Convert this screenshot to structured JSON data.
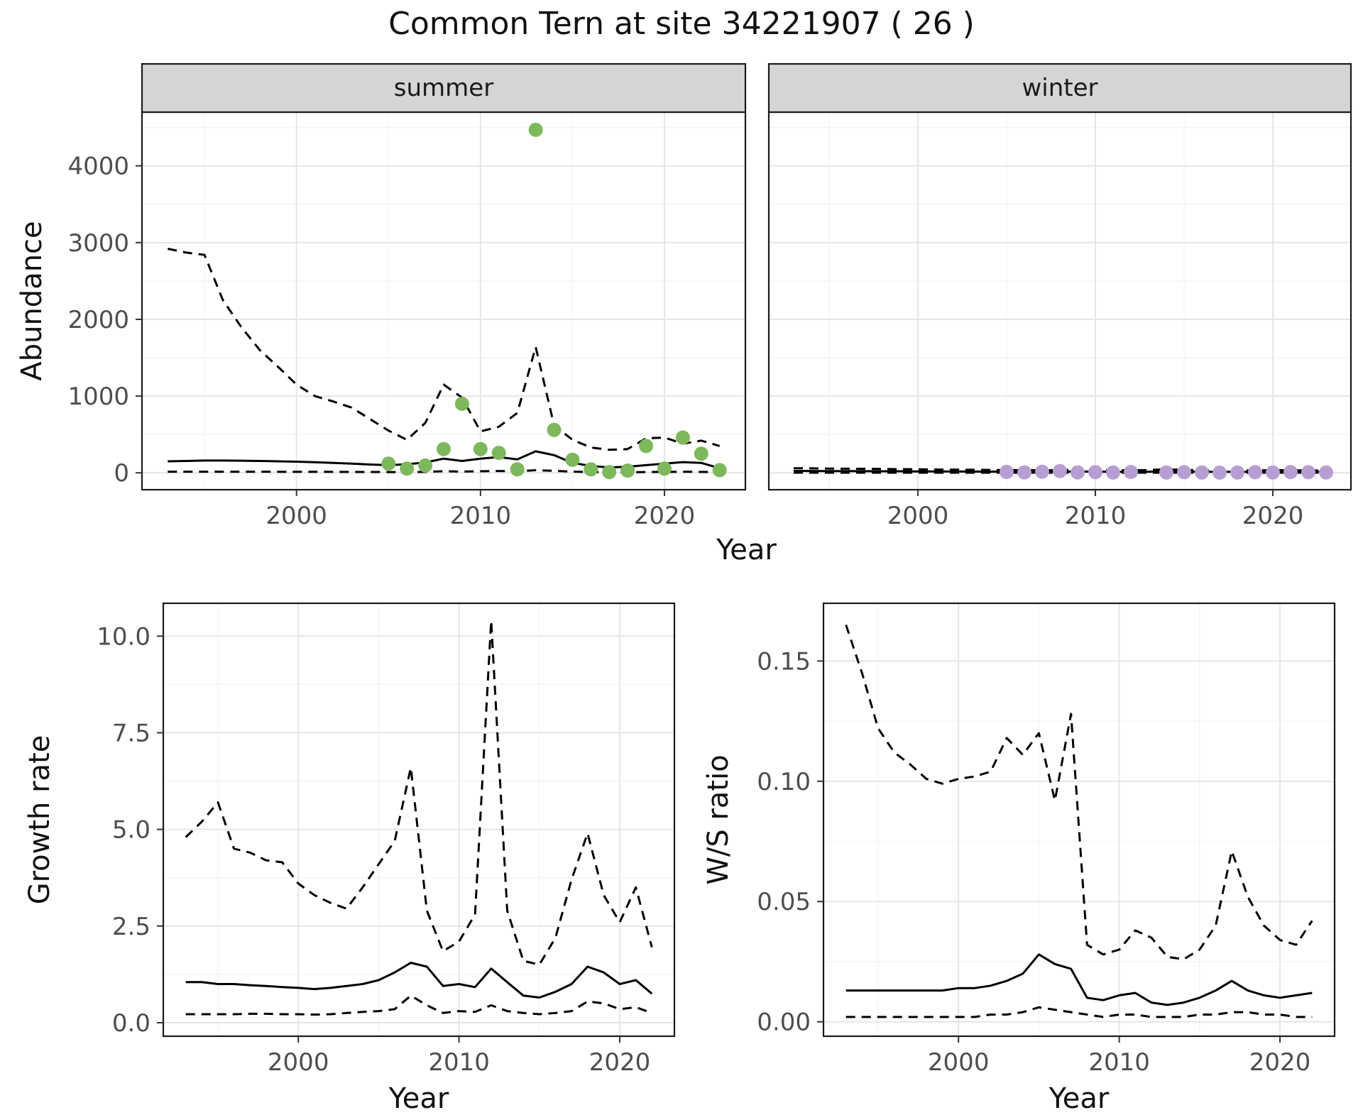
{
  "title": "Common Tern at site 34221907 ( 26 )",
  "colors": {
    "summer_point": "#7db85c",
    "winter_point": "#b79ed2",
    "line": "#000000",
    "grid_major": "#e4e4e4",
    "grid_minor": "#f2f2f2",
    "strip_bg": "#d5d5d5",
    "panel_border": "#1a1a1a",
    "tick_mark": "#333333",
    "tick_text": "#4d4d4d"
  },
  "chart_data": [
    {
      "id": "abundance_summer",
      "type": "line",
      "strip": "summer",
      "xlabel": "Year",
      "ylabel": "Abundance",
      "xlim": [
        1991.6,
        2024.4
      ],
      "ylim": [
        -220,
        4700
      ],
      "x_ticks": [
        2000,
        2010,
        2020
      ],
      "y_ticks": [
        0,
        1000,
        2000,
        3000,
        4000
      ],
      "y_tick_decimals": 0,
      "series": [
        {
          "name": "upper_ci",
          "style": "dashed",
          "x_start": 1993,
          "y": [
            2920,
            2870,
            2840,
            2250,
            1900,
            1600,
            1380,
            1150,
            1000,
            930,
            850,
            700,
            550,
            430,
            650,
            1150,
            980,
            540,
            600,
            780,
            1640,
            620,
            430,
            330,
            300,
            310,
            450,
            460,
            380,
            420,
            350
          ]
        },
        {
          "name": "fit",
          "style": "solid",
          "x_start": 1993,
          "y": [
            150,
            155,
            160,
            160,
            158,
            155,
            150,
            145,
            138,
            130,
            120,
            108,
            100,
            112,
            135,
            185,
            155,
            185,
            205,
            175,
            280,
            230,
            130,
            90,
            70,
            80,
            100,
            120,
            140,
            130,
            60
          ]
        },
        {
          "name": "lower_ci",
          "style": "dashed",
          "x_start": 1993,
          "y": [
            15,
            15,
            15,
            15,
            15,
            15,
            14,
            14,
            13,
            13,
            12,
            11,
            10,
            10,
            12,
            20,
            17,
            20,
            24,
            20,
            34,
            26,
            16,
            10,
            8,
            8,
            10,
            12,
            15,
            12,
            8
          ]
        }
      ],
      "points": {
        "name": "summer_observations",
        "color_key": "summer_point",
        "x": [
          2005,
          2006,
          2007,
          2008,
          2009,
          2010,
          2011,
          2012,
          2013,
          2014,
          2015,
          2016,
          2017,
          2018,
          2019,
          2020,
          2021,
          2022,
          2023
        ],
        "y": [
          120,
          55,
          95,
          310,
          900,
          310,
          260,
          45,
          4470,
          560,
          170,
          45,
          10,
          30,
          350,
          55,
          460,
          250,
          35
        ]
      }
    },
    {
      "id": "abundance_winter",
      "type": "line",
      "strip": "winter",
      "xlabel": "Year",
      "ylabel": "Abundance",
      "xlim": [
        1991.6,
        2024.4
      ],
      "ylim": [
        -220,
        4700
      ],
      "x_ticks": [
        2000,
        2010,
        2020
      ],
      "y_ticks": [
        0,
        1000,
        2000,
        3000,
        4000
      ],
      "y_tick_decimals": 0,
      "series": [
        {
          "name": "upper_ci",
          "style": "dashed",
          "x_start": 1993,
          "y": [
            60,
            58,
            56,
            54,
            52,
            50,
            48,
            46,
            44,
            42,
            40,
            38,
            36,
            34,
            33,
            35,
            40,
            38,
            34,
            33,
            36,
            45,
            38,
            33,
            30,
            30,
            32,
            34,
            33,
            32,
            30
          ]
        },
        {
          "name": "fit",
          "style": "solid",
          "x_start": 1993,
          "y": [
            25,
            24,
            23,
            22,
            21,
            20,
            20,
            19,
            18,
            18,
            17,
            16,
            15,
            14,
            14,
            15,
            17,
            16,
            14,
            14,
            15,
            18,
            16,
            14,
            13,
            13,
            13,
            14,
            14,
            13,
            12
          ]
        },
        {
          "name": "lower_ci",
          "style": "dashed",
          "x_start": 1993,
          "y": [
            2,
            2,
            2,
            2,
            2,
            2,
            2,
            2,
            2,
            2,
            2,
            2,
            2,
            2,
            2,
            2,
            2,
            2,
            2,
            2,
            2,
            2,
            2,
            2,
            2,
            2,
            2,
            2,
            2,
            2,
            2
          ]
        }
      ],
      "points": {
        "name": "winter_observations",
        "color_key": "winter_point",
        "x": [
          2005,
          2006,
          2007,
          2008,
          2009,
          2010,
          2011,
          2012,
          2014,
          2015,
          2016,
          2017,
          2018,
          2019,
          2020,
          2021,
          2022,
          2023
        ],
        "y": [
          12,
          6,
          15,
          22,
          6,
          9,
          5,
          11,
          5,
          8,
          5,
          3,
          5,
          8,
          5,
          10,
          8,
          5
        ]
      }
    },
    {
      "id": "growth_rate",
      "type": "line",
      "strip": null,
      "xlabel": "Year",
      "ylabel": "Growth rate",
      "xlim": [
        1991.6,
        2023.4
      ],
      "ylim": [
        -0.35,
        10.85
      ],
      "x_ticks": [
        2000,
        2010,
        2020
      ],
      "y_ticks": [
        0,
        2.5,
        5,
        7.5,
        10
      ],
      "y_tick_decimals": 1,
      "series": [
        {
          "name": "upper_ci",
          "style": "dashed",
          "x_start": 1993,
          "y": [
            4.8,
            5.2,
            5.7,
            4.5,
            4.4,
            4.2,
            4.15,
            3.6,
            3.3,
            3.1,
            2.95,
            3.5,
            4.1,
            4.7,
            6.6,
            2.9,
            1.85,
            2.1,
            2.8,
            10.4,
            2.9,
            1.6,
            1.5,
            2.2,
            3.7,
            4.9,
            3.3,
            2.6,
            3.5,
            1.95
          ]
        },
        {
          "name": "fit",
          "style": "solid",
          "x_start": 1993,
          "y": [
            1.05,
            1.05,
            1.0,
            1.0,
            0.97,
            0.95,
            0.92,
            0.9,
            0.87,
            0.9,
            0.95,
            1.0,
            1.1,
            1.3,
            1.55,
            1.45,
            0.95,
            1.0,
            0.92,
            1.4,
            1.05,
            0.7,
            0.65,
            0.8,
            1.0,
            1.45,
            1.3,
            1.0,
            1.1,
            0.75
          ]
        },
        {
          "name": "lower_ci",
          "style": "dashed",
          "x_start": 1993,
          "y": [
            0.22,
            0.22,
            0.22,
            0.22,
            0.23,
            0.23,
            0.22,
            0.22,
            0.21,
            0.22,
            0.25,
            0.28,
            0.3,
            0.35,
            0.7,
            0.45,
            0.25,
            0.3,
            0.28,
            0.45,
            0.3,
            0.25,
            0.22,
            0.25,
            0.3,
            0.55,
            0.5,
            0.35,
            0.4,
            0.25
          ]
        }
      ],
      "points": null
    },
    {
      "id": "ws_ratio",
      "type": "line",
      "strip": null,
      "xlabel": "Year",
      "ylabel": "W/S ratio",
      "xlim": [
        1991.6,
        2023.4
      ],
      "ylim": [
        -0.006,
        0.174
      ],
      "x_ticks": [
        2000,
        2010,
        2020
      ],
      "y_ticks": [
        0,
        0.05,
        0.1,
        0.15
      ],
      "y_tick_decimals": 2,
      "series": [
        {
          "name": "upper_ci",
          "style": "dashed",
          "x_start": 1993,
          "y": [
            0.165,
            0.145,
            0.122,
            0.112,
            0.107,
            0.101,
            0.099,
            0.101,
            0.102,
            0.104,
            0.118,
            0.111,
            0.12,
            0.092,
            0.128,
            0.032,
            0.028,
            0.03,
            0.038,
            0.035,
            0.027,
            0.026,
            0.03,
            0.04,
            0.071,
            0.052,
            0.04,
            0.034,
            0.032,
            0.042
          ]
        },
        {
          "name": "fit",
          "style": "solid",
          "x_start": 1993,
          "y": [
            0.013,
            0.013,
            0.013,
            0.013,
            0.013,
            0.013,
            0.013,
            0.014,
            0.014,
            0.015,
            0.017,
            0.02,
            0.028,
            0.024,
            0.022,
            0.01,
            0.009,
            0.011,
            0.012,
            0.008,
            0.007,
            0.008,
            0.01,
            0.013,
            0.017,
            0.013,
            0.011,
            0.01,
            0.011,
            0.012
          ]
        },
        {
          "name": "lower_ci",
          "style": "dashed",
          "x_start": 1993,
          "y": [
            0.002,
            0.002,
            0.002,
            0.002,
            0.002,
            0.002,
            0.002,
            0.002,
            0.002,
            0.003,
            0.003,
            0.004,
            0.006,
            0.005,
            0.004,
            0.003,
            0.002,
            0.003,
            0.003,
            0.002,
            0.002,
            0.002,
            0.003,
            0.003,
            0.004,
            0.004,
            0.003,
            0.003,
            0.002,
            0.002
          ]
        }
      ],
      "points": null
    }
  ]
}
